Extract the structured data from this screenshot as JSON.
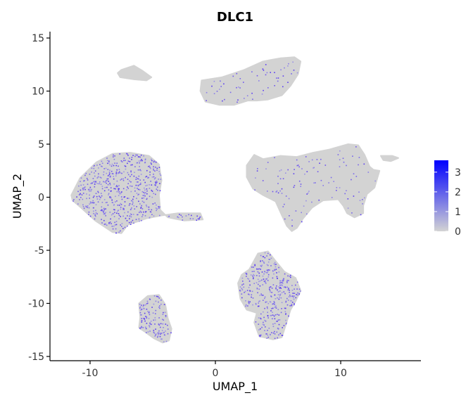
{
  "chart_data": {
    "type": "scatter",
    "title": "DLC1",
    "xlabel": "UMAP_1",
    "ylabel": "UMAP_2",
    "xlim": [
      -13.2,
      16.4
    ],
    "ylim": [
      -15.4,
      15.6
    ],
    "x_ticks": [
      -10,
      0,
      10
    ],
    "y_ticks": [
      -15,
      -10,
      -5,
      0,
      5,
      10,
      15
    ],
    "x_tick_labels": [
      "-10",
      "0",
      "10"
    ],
    "y_tick_labels": [
      "-15",
      "-10",
      "-5",
      "0",
      "5",
      "10",
      "15"
    ],
    "grid": false,
    "legend_position": "right",
    "color_scale": {
      "low": "#d3d3d3",
      "high": "#0000ff",
      "min": 0,
      "max": 3.6,
      "breaks": [
        0,
        1,
        2,
        3
      ],
      "break_labels": [
        "0",
        "1",
        "2",
        "3"
      ]
    },
    "clusters": [
      {
        "name": "top-small-island",
        "expression": "none",
        "outline": [
          [
            -7.5,
            12.0
          ],
          [
            -6.5,
            12.4
          ],
          [
            -5.8,
            11.9
          ],
          [
            -5.1,
            11.3
          ],
          [
            -5.5,
            11.0
          ],
          [
            -6.5,
            11.1
          ],
          [
            -7.6,
            11.3
          ],
          [
            -7.8,
            11.7
          ]
        ]
      },
      {
        "name": "top-large-lobe",
        "expression": "sparse",
        "outline": [
          [
            -1.1,
            11.0
          ],
          [
            0.5,
            11.3
          ],
          [
            2.3,
            12.0
          ],
          [
            3.8,
            12.8
          ],
          [
            5.2,
            13.1
          ],
          [
            6.3,
            13.2
          ],
          [
            6.8,
            12.8
          ],
          [
            6.6,
            11.6
          ],
          [
            6.0,
            10.5
          ],
          [
            5.3,
            9.6
          ],
          [
            4.2,
            9.2
          ],
          [
            3.3,
            9.1
          ],
          [
            2.6,
            9.1
          ],
          [
            1.5,
            8.7
          ],
          [
            0.3,
            8.7
          ],
          [
            -0.8,
            9.0
          ],
          [
            -1.2,
            10.0
          ]
        ]
      },
      {
        "name": "left-large-cluster",
        "expression": "high",
        "outline": [
          [
            -11.5,
            0.2
          ],
          [
            -10.8,
            1.8
          ],
          [
            -9.5,
            3.3
          ],
          [
            -8.2,
            4.1
          ],
          [
            -6.8,
            4.2
          ],
          [
            -5.3,
            3.9
          ],
          [
            -4.5,
            3.1
          ],
          [
            -4.3,
            1.6
          ],
          [
            -4.5,
            0.2
          ],
          [
            -4.4,
            -1.2
          ],
          [
            -3.8,
            -1.9
          ],
          [
            -2.5,
            -2.2
          ],
          [
            -1.0,
            -2.1
          ],
          [
            -1.2,
            -1.5
          ],
          [
            -3.0,
            -1.5
          ],
          [
            -4.2,
            -1.7
          ],
          [
            -5.5,
            -2.0
          ],
          [
            -7.0,
            -2.6
          ],
          [
            -7.5,
            -3.4
          ],
          [
            -8.2,
            -3.3
          ],
          [
            -9.6,
            -2.2
          ],
          [
            -10.8,
            -0.9
          ],
          [
            -11.4,
            -0.3
          ]
        ]
      },
      {
        "name": "right-large-mass",
        "expression": "sparse",
        "outline": [
          [
            2.5,
            3.0
          ],
          [
            3.1,
            4.0
          ],
          [
            3.8,
            3.6
          ],
          [
            5.2,
            3.9
          ],
          [
            6.5,
            3.8
          ],
          [
            7.8,
            4.2
          ],
          [
            9.1,
            4.5
          ],
          [
            10.6,
            5.0
          ],
          [
            11.4,
            4.9
          ],
          [
            11.9,
            4.0
          ],
          [
            12.3,
            2.9
          ],
          [
            12.6,
            2.6
          ],
          [
            13.1,
            2.5
          ],
          [
            12.7,
            0.9
          ],
          [
            12.1,
            0.3
          ],
          [
            11.8,
            -0.8
          ],
          [
            11.8,
            -1.5
          ],
          [
            11.1,
            -1.9
          ],
          [
            10.5,
            -1.5
          ],
          [
            10.2,
            -0.8
          ],
          [
            9.8,
            -0.2
          ],
          [
            8.6,
            -0.3
          ],
          [
            7.7,
            -1.0
          ],
          [
            7.0,
            -2.0
          ],
          [
            6.5,
            -2.9
          ],
          [
            6.1,
            -3.2
          ],
          [
            5.7,
            -2.7
          ],
          [
            5.3,
            -1.7
          ],
          [
            4.8,
            -0.4
          ],
          [
            3.8,
            0.2
          ],
          [
            3.0,
            0.8
          ],
          [
            2.5,
            1.9
          ]
        ]
      },
      {
        "name": "right-small-speck",
        "expression": "none",
        "outline": [
          [
            13.2,
            3.9
          ],
          [
            14.1,
            3.9
          ],
          [
            14.6,
            3.7
          ],
          [
            14.0,
            3.4
          ],
          [
            13.4,
            3.5
          ]
        ]
      },
      {
        "name": "bottom-middle-cluster",
        "expression": "high",
        "outline": [
          [
            2.7,
            -6.8
          ],
          [
            3.4,
            -5.3
          ],
          [
            4.2,
            -5.1
          ],
          [
            4.8,
            -6.0
          ],
          [
            5.5,
            -7.0
          ],
          [
            6.4,
            -7.6
          ],
          [
            6.8,
            -8.8
          ],
          [
            6.4,
            -9.8
          ],
          [
            6.0,
            -10.6
          ],
          [
            5.6,
            -12.1
          ],
          [
            5.3,
            -13.2
          ],
          [
            4.6,
            -13.4
          ],
          [
            3.5,
            -13.1
          ],
          [
            3.1,
            -11.8
          ],
          [
            3.3,
            -10.9
          ],
          [
            2.5,
            -10.6
          ],
          [
            2.0,
            -9.6
          ],
          [
            1.8,
            -8.1
          ],
          [
            2.1,
            -7.3
          ]
        ]
      },
      {
        "name": "bottom-left-cluster",
        "expression": "high",
        "outline": [
          [
            -6.1,
            -10.0
          ],
          [
            -5.4,
            -9.3
          ],
          [
            -4.5,
            -9.2
          ],
          [
            -4.0,
            -10.1
          ],
          [
            -3.8,
            -11.4
          ],
          [
            -3.5,
            -12.4
          ],
          [
            -3.7,
            -13.5
          ],
          [
            -4.2,
            -13.7
          ],
          [
            -4.9,
            -13.3
          ],
          [
            -5.6,
            -12.7
          ],
          [
            -6.1,
            -12.3
          ],
          [
            -6.0,
            -11.3
          ]
        ]
      }
    ]
  }
}
